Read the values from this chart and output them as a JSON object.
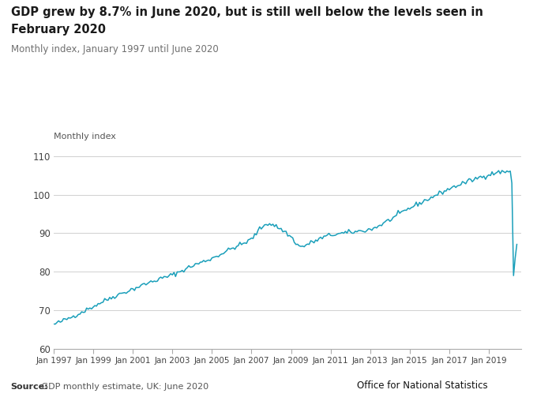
{
  "title_line1": "GDP grew by 8.7% in June 2020, but is still well below the levels seen in",
  "title_line2": "February 2020",
  "subtitle": "Monthly index, January 1997 until June 2020",
  "ylabel": "Monthly index",
  "ylim": [
    60,
    112
  ],
  "yticks": [
    60,
    70,
    80,
    90,
    100,
    110
  ],
  "line_color": "#1a9fba",
  "bg_color": "#ffffff",
  "grid_color": "#d0d0d0",
  "title_color": "#1a1a1a",
  "subtitle_color": "#707070",
  "source_label": "Source:",
  "source_text": " GDP monthly estimate, UK: June 2020",
  "ons_text": "Office for National Statistics"
}
